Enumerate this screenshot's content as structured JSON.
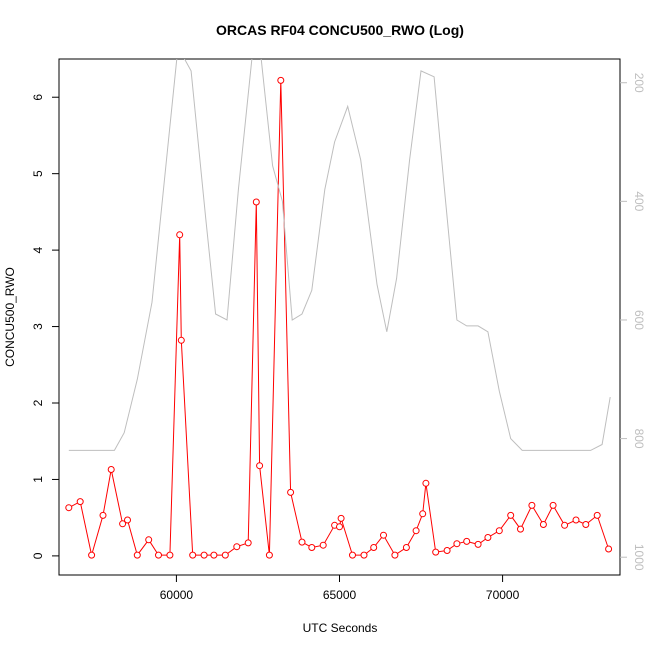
{
  "chart_data": {
    "type": "line",
    "title": "ORCAS RF04 CONCU500_RWO (Log)",
    "xlabel": "UTC Seconds",
    "ylabel": "CONCU500_RWO",
    "xlim": [
      56400,
      73600
    ],
    "ylim": [
      -0.25,
      6.5
    ],
    "x_ticks": [
      60000,
      65000,
      70000
    ],
    "x_tick_labels": [
      "60000",
      "65000",
      "70000"
    ],
    "y_ticks": [
      0,
      1,
      2,
      3,
      4,
      5,
      6
    ],
    "y_tick_labels": [
      "0",
      "1",
      "2",
      "3",
      "4",
      "5",
      "6"
    ],
    "y2_reversed": true,
    "y2lim": [
      1030,
      160
    ],
    "y2_ticks": [
      200,
      400,
      600,
      800,
      1000
    ],
    "y2_tick_labels": [
      "200",
      "400",
      "600",
      "800",
      "1000"
    ],
    "grid": false,
    "legend": "none",
    "series": [
      {
        "axis": "left",
        "color": "#ff0000",
        "marker": "open-circle",
        "x": [
          56700,
          57050,
          57400,
          57750,
          58000,
          58350,
          58500,
          58800,
          59150,
          59450,
          59800,
          60100,
          60150,
          60500,
          60850,
          61150,
          61500,
          61850,
          62200,
          62450,
          62550,
          62850,
          63200,
          63500,
          63850,
          64150,
          64500,
          64850,
          65000,
          65050,
          65400,
          65750,
          66050,
          66350,
          66700,
          67050,
          67350,
          67550,
          67650,
          67950,
          68300,
          68600,
          68900,
          69250,
          69550,
          69900,
          70250,
          70550,
          70900,
          71250,
          71550,
          71900,
          72250,
          72550,
          72900,
          73250
        ],
        "y": [
          0.63,
          0.71,
          0.01,
          0.53,
          1.13,
          0.42,
          0.47,
          0.01,
          0.21,
          0.01,
          0.01,
          4.2,
          2.82,
          0.01,
          0.01,
          0.01,
          0.01,
          0.12,
          0.17,
          4.63,
          1.18,
          0.01,
          6.22,
          0.83,
          0.18,
          0.11,
          0.14,
          0.4,
          0.38,
          0.49,
          0.01,
          0.01,
          0.11,
          0.27,
          0.01,
          0.11,
          0.33,
          0.55,
          0.95,
          0.05,
          0.07,
          0.16,
          0.19,
          0.15,
          0.24,
          0.33,
          0.53,
          0.35,
          0.66,
          0.41,
          0.66,
          0.4,
          0.47,
          0.41,
          0.53,
          0.09
        ]
      },
      {
        "axis": "right",
        "color": "#bebebe",
        "marker": "none",
        "x": [
          56700,
          57400,
          58100,
          58400,
          58800,
          59250,
          59750,
          60050,
          60450,
          60900,
          61200,
          61550,
          61900,
          62350,
          62600,
          62950,
          63250,
          63550,
          63850,
          64150,
          64550,
          64850,
          65250,
          65650,
          66150,
          66450,
          66750,
          67150,
          67500,
          67900,
          68200,
          68600,
          68900,
          69250,
          69550,
          69900,
          70250,
          70600,
          70950,
          71300,
          71650,
          72000,
          72350,
          72700,
          73050,
          73300
        ],
        "y": [
          820,
          820,
          820,
          790,
          700,
          570,
          300,
          140,
          180,
          430,
          590,
          600,
          380,
          140,
          160,
          340,
          400,
          600,
          590,
          550,
          380,
          300,
          240,
          330,
          540,
          620,
          530,
          330,
          180,
          190,
          370,
          600,
          610,
          610,
          620,
          720,
          800,
          820,
          820,
          820,
          820,
          820,
          820,
          820,
          810,
          730
        ]
      }
    ]
  }
}
